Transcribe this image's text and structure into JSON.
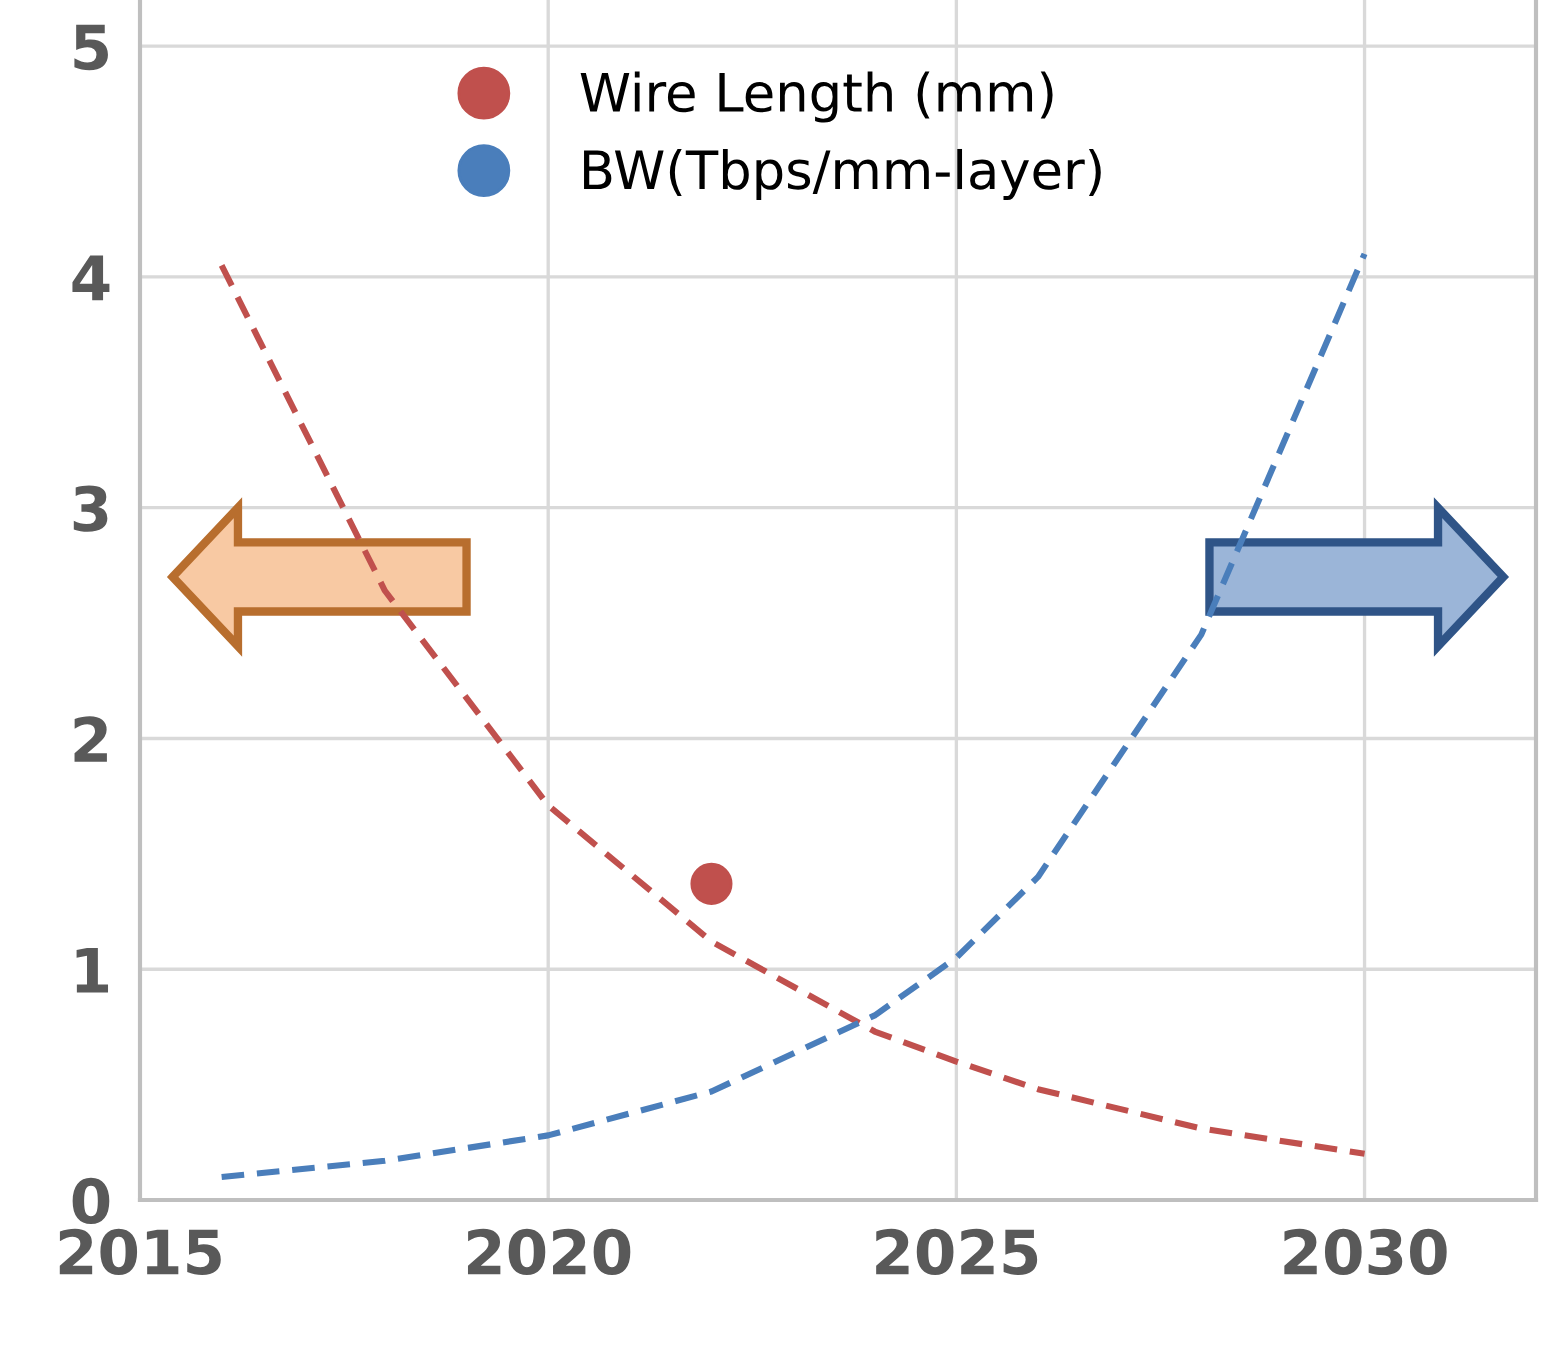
{
  "chart_data": {
    "type": "line",
    "x": [
      2016,
      2018,
      2020,
      2022,
      2024,
      2025,
      2026,
      2028,
      2030
    ],
    "series": [
      {
        "name": "Wire Length (mm)",
        "color": "#c0504d",
        "line_style": "dashed",
        "values": [
          4.05,
          2.64,
          1.71,
          1.12,
          0.73,
          0.6,
          0.48,
          0.31,
          0.2
        ]
      },
      {
        "name": "BW(Tbps/mm-layer)",
        "color": "#4a7ebb",
        "line_style": "dashed",
        "values": [
          0.1,
          0.17,
          0.28,
          0.47,
          0.8,
          1.05,
          1.4,
          2.45,
          4.1
        ]
      },
      {
        "type": "scatter",
        "color": "#c0504d",
        "x": [
          2022
        ],
        "values": [
          1.37
        ]
      }
    ],
    "xlim": [
      2015,
      2032.1
    ],
    "ylim": [
      0,
      5.2
    ],
    "xticks": [
      2015,
      2020,
      2025,
      2030
    ],
    "yticks": [
      0,
      1,
      2,
      3,
      4,
      5
    ],
    "grid": true,
    "legend": "top"
  }
}
